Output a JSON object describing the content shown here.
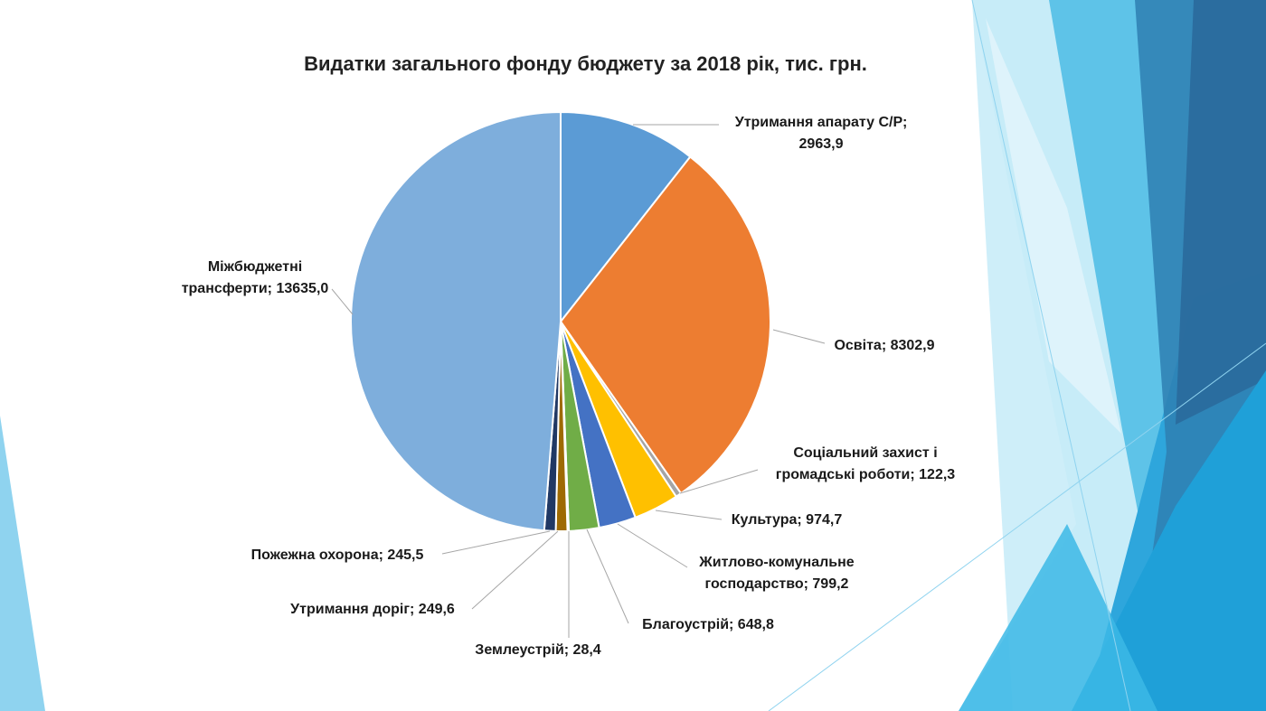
{
  "chart_data": {
    "type": "pie",
    "title": "Видатки загального фонду бюджету за 2018 рік, тис. грн.",
    "slices": [
      {
        "label_lines": [
          "Утримання апарату С/Р;",
          "2963,9"
        ],
        "value": 2963.9,
        "color": "#5b9bd5"
      },
      {
        "label_lines": [
          "Освіта; 8302,9"
        ],
        "value": 8302.9,
        "color": "#ed7d31"
      },
      {
        "label_lines": [
          "Соціальний захист і",
          "громадські роботи; 122,3"
        ],
        "value": 122.3,
        "color": "#a5a5a5"
      },
      {
        "label_lines": [
          "Культура; 974,7"
        ],
        "value": 974.7,
        "color": "#ffc000"
      },
      {
        "label_lines": [
          "Житлово-комунальне",
          "господарство; 799,2"
        ],
        "value": 799.2,
        "color": "#4472c4"
      },
      {
        "label_lines": [
          "Благоустрій; 648,8"
        ],
        "value": 648.8,
        "color": "#70ad47"
      },
      {
        "label_lines": [
          "Землеустрій; 28,4"
        ],
        "value": 28.4,
        "color": "#264478"
      },
      {
        "label_lines": [
          "Утримання доріг; 249,6"
        ],
        "value": 249.6,
        "color": "#9e6a03"
      },
      {
        "label_lines": [
          "Пожежна охорона; 245,5"
        ],
        "value": 245.5,
        "color": "#203864"
      },
      {
        "label_lines": [
          "Міжбюджетні",
          "трансферти; 13635,0"
        ],
        "value": 13635.0,
        "color": "#7eaedc"
      }
    ],
    "legend": "none",
    "data_labels": "outside with leader lines"
  }
}
